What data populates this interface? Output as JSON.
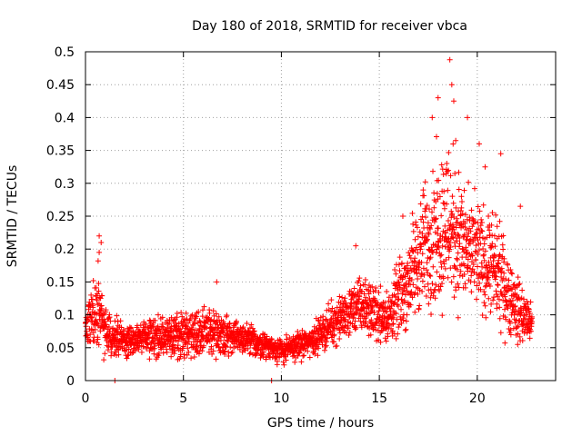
{
  "chart_data": {
    "type": "scatter",
    "title": "Day 180 of 2018, SRMTID for receiver vbca",
    "xlabel": "GPS time / hours",
    "ylabel": "SRMTID / TECUs",
    "xlim": [
      0,
      24
    ],
    "ylim": [
      0,
      0.5
    ],
    "x_ticks": [
      0,
      5,
      10,
      15,
      20
    ],
    "x_tick_labels": [
      "0",
      "5",
      "10",
      "15",
      "20"
    ],
    "y_ticks": [
      0,
      0.05,
      0.1,
      0.15,
      0.2,
      0.25,
      0.3,
      0.35,
      0.4,
      0.45,
      0.5
    ],
    "y_tick_labels": [
      "0",
      "0.05",
      "0.1",
      "0.15",
      "0.2",
      "0.25",
      "0.3",
      "0.35",
      "0.4",
      "0.45",
      "0.5"
    ],
    "grid": true,
    "marker": "+",
    "marker_color": "#ff0000",
    "series": [
      {
        "name": "SRMTID",
        "envelope": [
          {
            "x": 0.0,
            "y_low": 0.035,
            "y_high": 0.12
          },
          {
            "x": 0.6,
            "y_low": 0.03,
            "y_high": 0.2
          },
          {
            "x": 1.0,
            "y_low": 0.03,
            "y_high": 0.12
          },
          {
            "x": 2.0,
            "y_low": 0.03,
            "y_high": 0.09
          },
          {
            "x": 4.0,
            "y_low": 0.025,
            "y_high": 0.11
          },
          {
            "x": 6.5,
            "y_low": 0.03,
            "y_high": 0.12
          },
          {
            "x": 8.5,
            "y_low": 0.03,
            "y_high": 0.09
          },
          {
            "x": 10.0,
            "y_low": 0.02,
            "y_high": 0.07
          },
          {
            "x": 11.5,
            "y_low": 0.03,
            "y_high": 0.09
          },
          {
            "x": 13.0,
            "y_low": 0.05,
            "y_high": 0.14
          },
          {
            "x": 14.0,
            "y_low": 0.06,
            "y_high": 0.17
          },
          {
            "x": 15.5,
            "y_low": 0.04,
            "y_high": 0.15
          },
          {
            "x": 16.5,
            "y_low": 0.06,
            "y_high": 0.25
          },
          {
            "x": 17.5,
            "y_low": 0.08,
            "y_high": 0.35
          },
          {
            "x": 18.5,
            "y_low": 0.07,
            "y_high": 0.42
          },
          {
            "x": 19.5,
            "y_low": 0.08,
            "y_high": 0.31
          },
          {
            "x": 20.0,
            "y_low": 0.08,
            "y_high": 0.3
          },
          {
            "x": 21.0,
            "y_low": 0.06,
            "y_high": 0.27
          },
          {
            "x": 22.0,
            "y_low": 0.04,
            "y_high": 0.18
          },
          {
            "x": 22.8,
            "y_low": 0.05,
            "y_high": 0.12
          }
        ],
        "notable_points": [
          {
            "x": 0.7,
            "y": 0.22
          },
          {
            "x": 0.8,
            "y": 0.21
          },
          {
            "x": 0.7,
            "y": 0.195
          },
          {
            "x": 1.5,
            "y": 0.0
          },
          {
            "x": 6.7,
            "y": 0.15
          },
          {
            "x": 9.5,
            "y": 0.0
          },
          {
            "x": 13.8,
            "y": 0.205
          },
          {
            "x": 16.2,
            "y": 0.25
          },
          {
            "x": 17.7,
            "y": 0.4
          },
          {
            "x": 18.0,
            "y": 0.43
          },
          {
            "x": 18.6,
            "y": 0.488
          },
          {
            "x": 18.7,
            "y": 0.45
          },
          {
            "x": 18.8,
            "y": 0.425
          },
          {
            "x": 18.9,
            "y": 0.365
          },
          {
            "x": 19.5,
            "y": 0.4
          },
          {
            "x": 20.1,
            "y": 0.36
          },
          {
            "x": 20.4,
            "y": 0.325
          },
          {
            "x": 21.2,
            "y": 0.345
          },
          {
            "x": 22.2,
            "y": 0.265
          }
        ]
      }
    ]
  }
}
